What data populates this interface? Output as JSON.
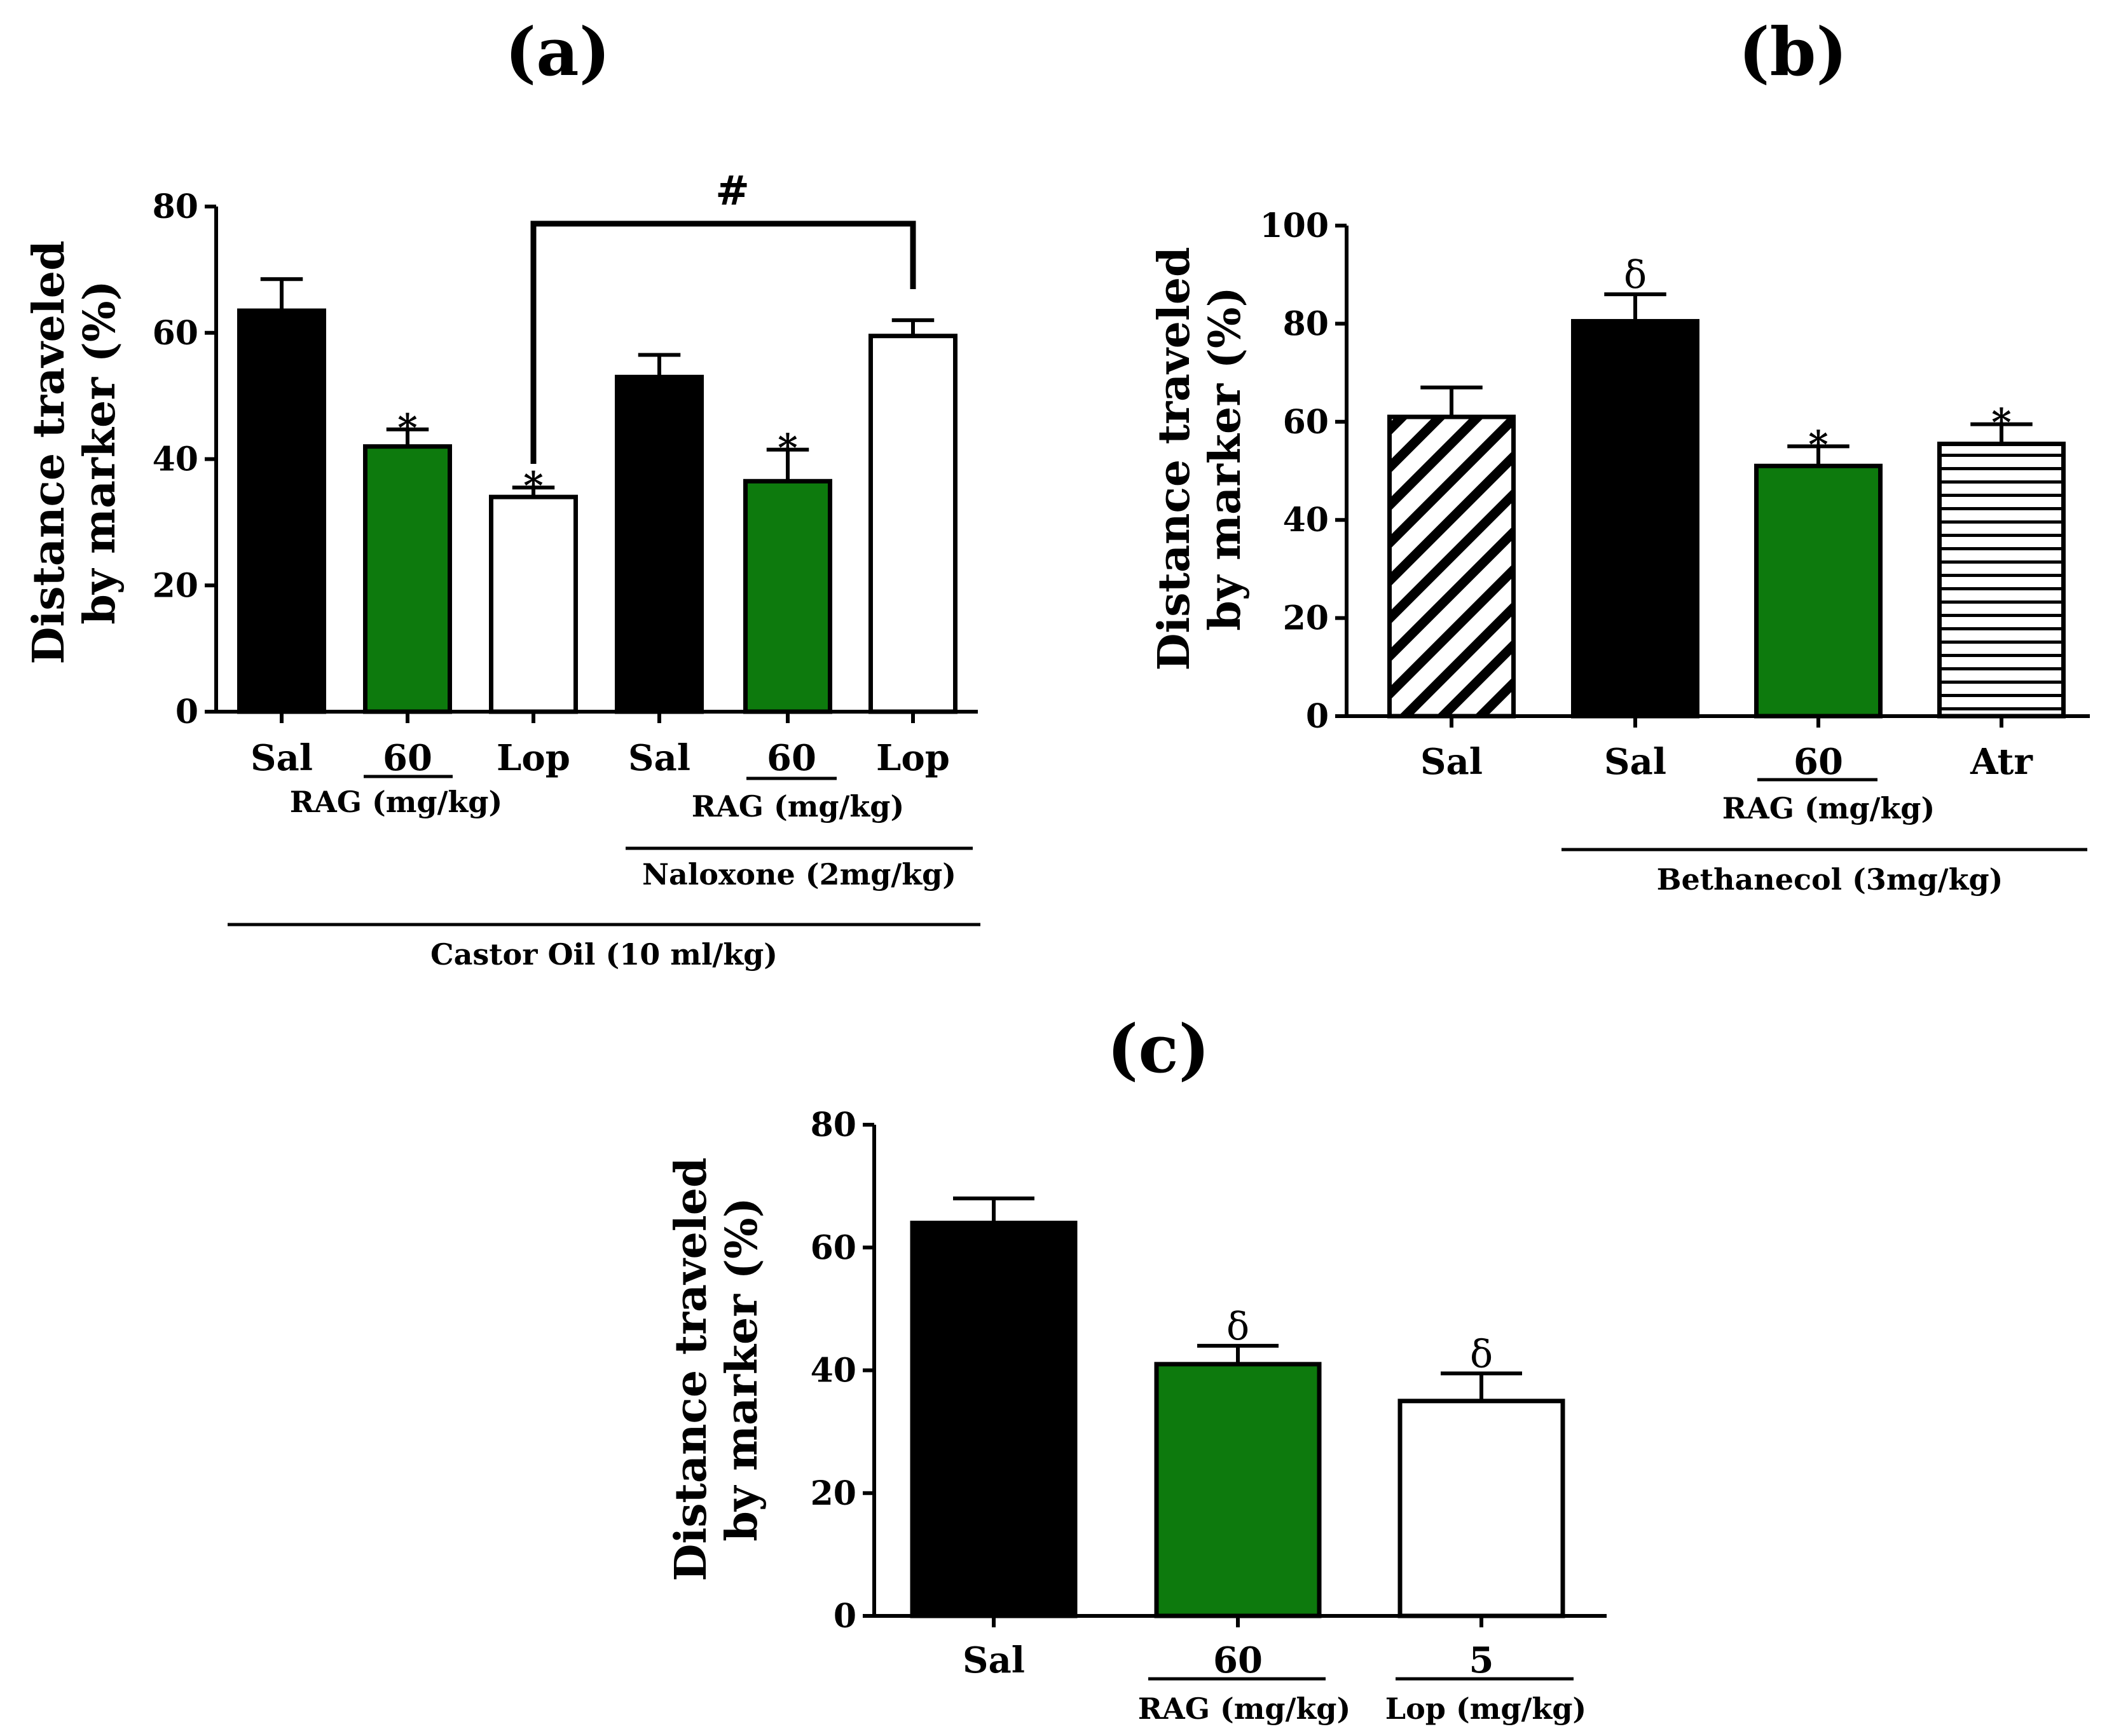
{
  "chart_data": [
    {
      "panel_label": "(a)",
      "type": "bar",
      "ylabel": [
        "Distance traveled",
        "by marker (%)"
      ],
      "ylim": [
        0,
        80
      ],
      "yticks": [
        "0",
        "20",
        "40",
        "60",
        "80"
      ],
      "categories": [
        "Sal",
        "60",
        "Lop",
        "Sal",
        "60",
        "Lop"
      ],
      "values": [
        63.5,
        42,
        34,
        53,
        36.5,
        59.5
      ],
      "errors": [
        5,
        2.7,
        1.5,
        3.5,
        5,
        2.5
      ],
      "fills": [
        "#000000",
        "#0d7a0d",
        "#ffffff",
        "#000000",
        "#0d7a0d",
        "#ffffff"
      ],
      "annotations": [
        "",
        "*",
        "*",
        "",
        "*",
        ""
      ],
      "groups": {
        "rag_1": "RAG (mg/kg)",
        "rag_2": "RAG (mg/kg)",
        "naloxone": "Naloxone (2mg/kg)",
        "castor": "Castor Oil (10 ml/kg)"
      },
      "bracket_label": "#"
    },
    {
      "panel_label": "(b)",
      "type": "bar",
      "ylabel": [
        "Distance traveled",
        "by marker (%)"
      ],
      "ylim": [
        0,
        100
      ],
      "yticks": [
        "0",
        "20",
        "40",
        "60",
        "80",
        "100"
      ],
      "categories": [
        "Sal",
        "Sal",
        "60",
        "Atr"
      ],
      "values": [
        61,
        80.5,
        51,
        55.5
      ],
      "errors": [
        6,
        5.5,
        4,
        4
      ],
      "fills": [
        "diagonal-hatch",
        "#000000",
        "#0d7a0d",
        "horizontal-hatch"
      ],
      "annotations": [
        "",
        "δ",
        "*",
        "*"
      ],
      "groups": {
        "rag": "RAG (mg/kg)",
        "bethanecol": "Bethanecol (3mg/kg)"
      }
    },
    {
      "panel_label": "(c)",
      "type": "bar",
      "ylabel": [
        "Distance traveled",
        "by marker (%)"
      ],
      "ylim": [
        0,
        80
      ],
      "yticks": [
        "0",
        "20",
        "40",
        "60",
        "80"
      ],
      "categories": [
        "Sal",
        "60",
        "5"
      ],
      "values": [
        64,
        41,
        35
      ],
      "errors": [
        4,
        3,
        4.5
      ],
      "fills": [
        "#000000",
        "#0d7a0d",
        "#ffffff"
      ],
      "annotations": [
        "",
        "δ",
        "δ"
      ],
      "groups": {
        "rag": "RAG (mg/kg)",
        "lop": "Lop (mg/kg)"
      }
    }
  ]
}
